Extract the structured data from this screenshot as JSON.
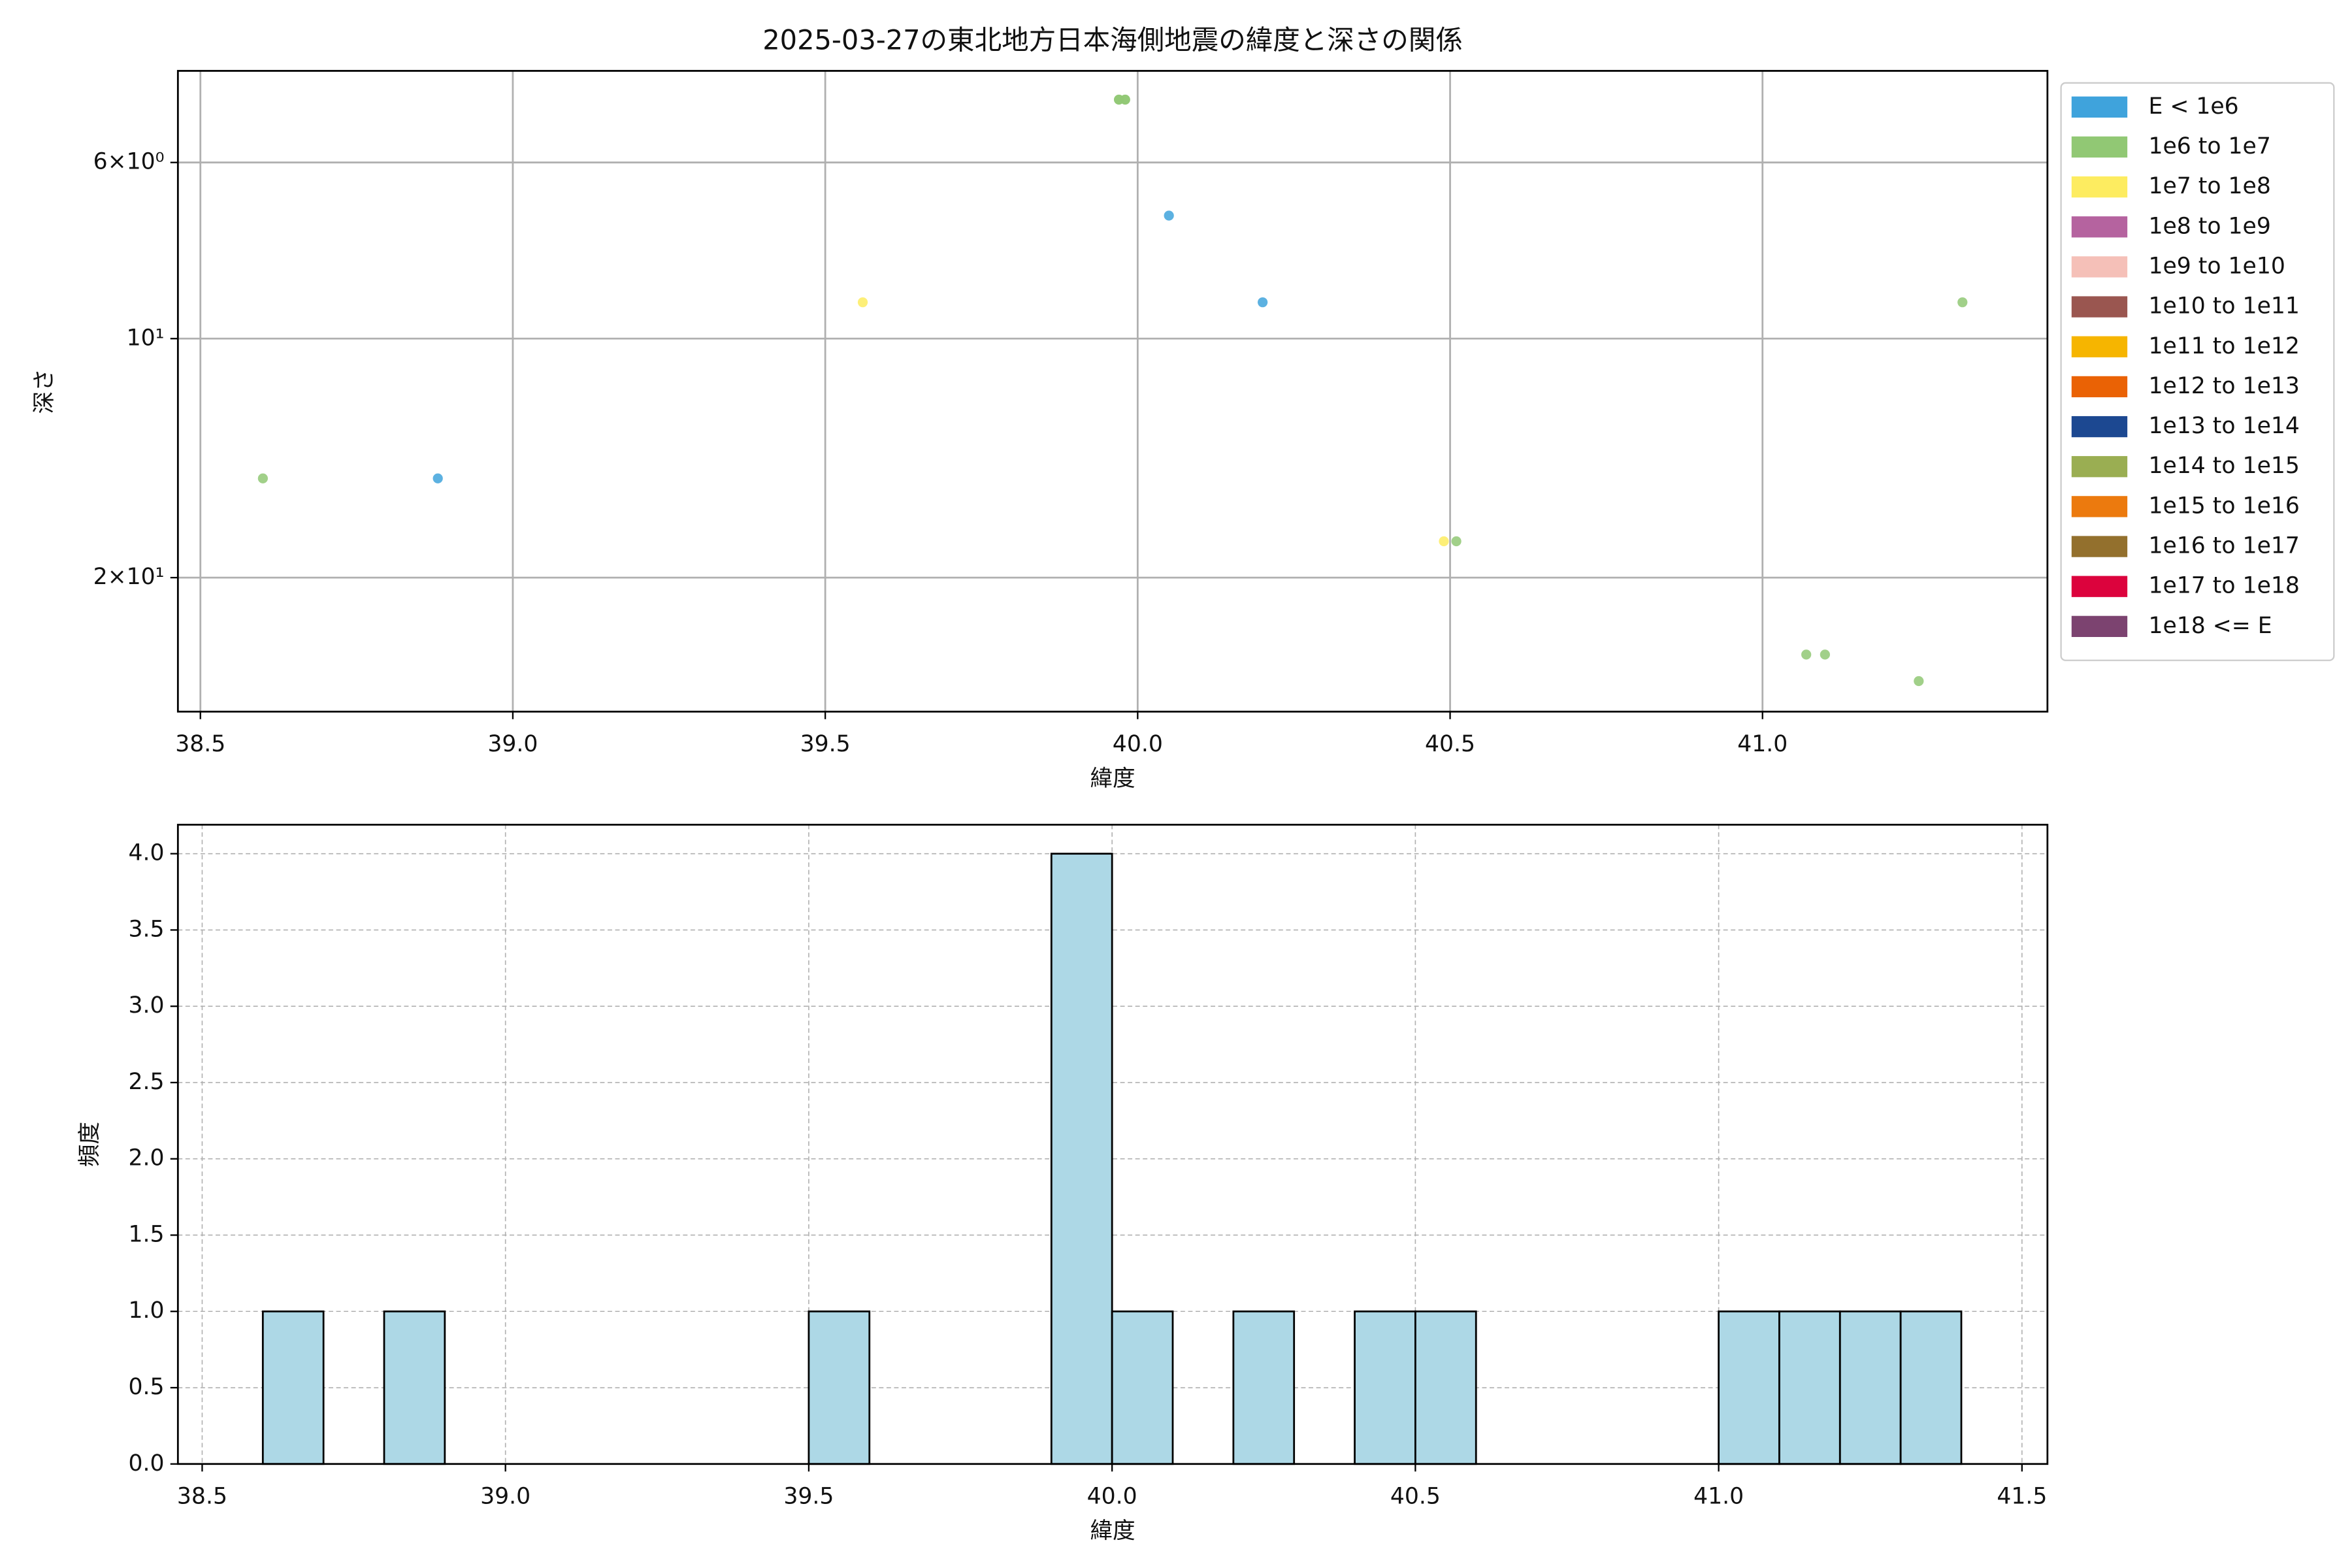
{
  "chart_data": [
    {
      "type": "scatter",
      "title": "2025-03-27の東北地方日本海側地震の緯度と深さの関係",
      "x_label": "緯度",
      "y_label": "深さ",
      "log_y": true,
      "grid": true,
      "legend": "outside right",
      "xlim": [
        38.464,
        41.456
      ],
      "ylim": [
        29.5,
        4.6
      ],
      "xticks": [
        38.5,
        {
          "value": 39,
          "label": "39.0"
        },
        39.5,
        {
          "value": 40,
          "label": "40.0"
        },
        40.5,
        {
          "value": 41,
          "label": "41.0"
        }
      ],
      "yticks": [
        {
          "value": 6,
          "label": "6×10⁰"
        },
        {
          "value": 10,
          "label": "10¹"
        },
        {
          "value": 20,
          "label": "2×10¹"
        }
      ],
      "series": [
        {
          "name": "E < 1e6",
          "color": "#3fa3dc",
          "x": [
            38.88,
            40.05,
            40.2
          ],
          "values": [
            15,
            7,
            9
          ]
        },
        {
          "name": "1e6 to 1e7",
          "color": "#91c874",
          "x": [
            38.6,
            39.97,
            39.97,
            39.98,
            39.98,
            40.51,
            41.07,
            41.1,
            41.25,
            41.32
          ],
          "values": [
            15,
            5,
            5,
            5,
            5,
            18,
            25,
            25,
            27,
            9
          ]
        },
        {
          "name": "1e7 to 1e8",
          "color": "#fdec60",
          "x": [
            39.56,
            40.49
          ],
          "values": [
            9,
            18
          ]
        },
        {
          "name": "1e8 to 1e9",
          "color": "#b5639f",
          "x": [],
          "values": []
        },
        {
          "name": "1e9 to 1e10",
          "color": "#f5c0b8",
          "x": [],
          "values": []
        },
        {
          "name": "1e10 to 1e11",
          "color": "#9a5650",
          "x": [],
          "values": []
        },
        {
          "name": "1e11 to 1e12",
          "color": "#f6b500",
          "x": [],
          "values": []
        },
        {
          "name": "1e12 to 1e13",
          "color": "#ea6205",
          "x": [],
          "values": []
        },
        {
          "name": "1e13 to 1e14",
          "color": "#1c4891",
          "x": [],
          "values": []
        },
        {
          "name": "1e14 to 1e15",
          "color": "#9aae52",
          "x": [],
          "values": []
        },
        {
          "name": "1e15 to 1e16",
          "color": "#ec7a0e",
          "x": [],
          "values": []
        },
        {
          "name": "1e16 to 1e17",
          "color": "#93702d",
          "x": [],
          "values": []
        },
        {
          "name": "1e17 to 1e18",
          "color": "#dc033d",
          "x": [],
          "values": []
        },
        {
          "name": "1e18 <= E",
          "color": "#7c4370",
          "x": [],
          "values": []
        }
      ]
    },
    {
      "type": "histogram",
      "x_label": "緯度",
      "y_label": "頻度",
      "grid": true,
      "color": "#add8e6",
      "edge_color": "#000000",
      "xlim": [
        38.46,
        41.542
      ],
      "ylim": [
        0,
        4.19
      ],
      "xticks": [
        38.5,
        {
          "value": 39,
          "label": "39.0"
        },
        39.5,
        {
          "value": 40,
          "label": "40.0"
        },
        40.5,
        {
          "value": 41,
          "label": "41.0"
        },
        41.5
      ],
      "yticks": [
        {
          "value": 0,
          "label": "0.0"
        },
        0.5,
        {
          "value": 1,
          "label": "1.0"
        },
        1.5,
        {
          "value": 2,
          "label": "2.0"
        },
        2.5,
        {
          "value": 3,
          "label": "3.0"
        },
        3.5,
        {
          "value": 4,
          "label": "4.0"
        }
      ],
      "bins": [
        38.6,
        38.7,
        38.8,
        38.9,
        39.0,
        39.1,
        39.2,
        39.3,
        39.4,
        39.5,
        39.6,
        39.7,
        39.8,
        39.9,
        40.0,
        40.1,
        40.2,
        40.3,
        40.4,
        40.5,
        40.6,
        40.7,
        40.8,
        40.9,
        41.0,
        41.1,
        41.2,
        41.3,
        41.4
      ],
      "values": [
        1,
        0,
        1,
        0,
        0,
        0,
        0,
        0,
        0,
        1,
        0,
        0,
        0,
        4,
        1,
        0,
        1,
        0,
        1,
        1,
        0,
        0,
        0,
        0,
        1,
        1,
        1,
        1
      ]
    }
  ]
}
